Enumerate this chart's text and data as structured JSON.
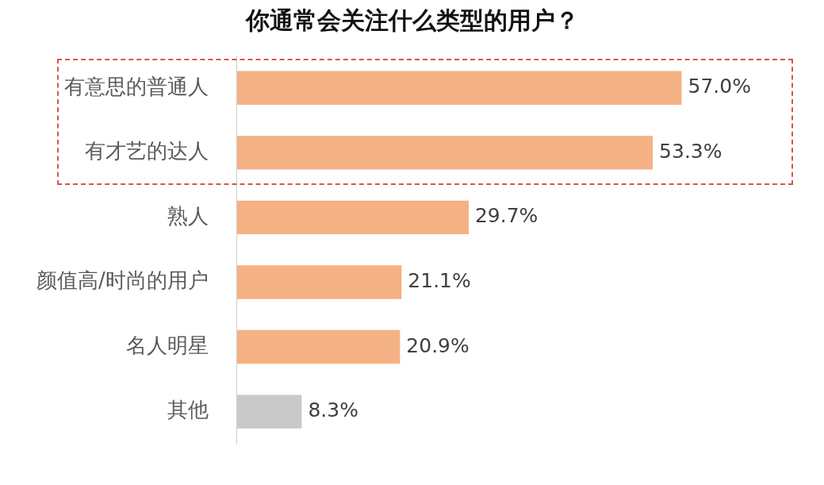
{
  "chart_data": {
    "type": "bar",
    "orientation": "horizontal",
    "title": "你通常会关注什么类型的用户？",
    "categories": [
      "有意思的普通人",
      "有才艺的达人",
      "熟人",
      "颜值高/时尚的用户",
      "名人明星",
      "其他"
    ],
    "values": [
      57.0,
      53.3,
      29.7,
      21.1,
      20.9,
      8.3
    ],
    "value_labels": [
      "57.0%",
      "53.3%",
      "29.7%",
      "21.1%",
      "20.9%",
      "8.3%"
    ],
    "colors": [
      "#f4b183",
      "#f4b183",
      "#f4b183",
      "#f4b183",
      "#f4b183",
      "#c9c9c9"
    ],
    "grid": false,
    "legend": false,
    "tick_labels": "y"
  }
}
